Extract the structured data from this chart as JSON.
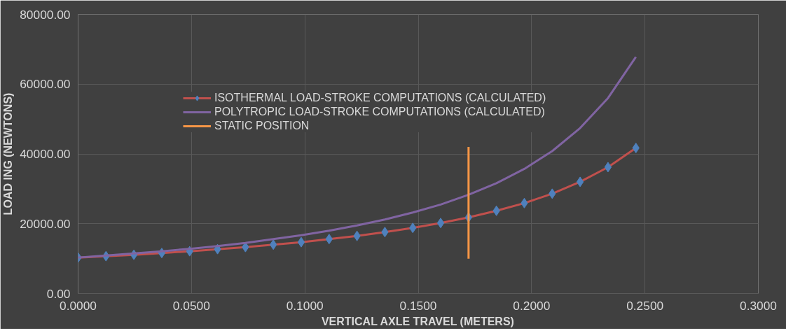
{
  "chart_data": {
    "type": "line",
    "xlabel": "VERTICAL AXLE TRAVEL (METERS)",
    "ylabel": "LOAD ING (NEWTONS)",
    "xlim": [
      0,
      0.3
    ],
    "ylim": [
      0,
      80000
    ],
    "xticks": [
      {
        "value": 0,
        "label": "0.0000"
      },
      {
        "value": 0.05,
        "label": "0.0500"
      },
      {
        "value": 0.1,
        "label": "0.1000"
      },
      {
        "value": 0.15,
        "label": "0.1500"
      },
      {
        "value": 0.2,
        "label": "0.2000"
      },
      {
        "value": 0.25,
        "label": "0.2500"
      },
      {
        "value": 0.3,
        "label": "0.3000"
      }
    ],
    "yticks": [
      {
        "value": 0,
        "label": "0.00"
      },
      {
        "value": 20000,
        "label": "20000.00"
      },
      {
        "value": 40000,
        "label": "40000.00"
      },
      {
        "value": 60000,
        "label": "60000.00"
      },
      {
        "value": 80000,
        "label": "80000.00"
      }
    ],
    "grid": true,
    "legend": "top",
    "x": [
      0,
      0.0123,
      0.0246,
      0.0369,
      0.0492,
      0.0615,
      0.0738,
      0.0861,
      0.0984,
      0.1107,
      0.123,
      0.1353,
      0.1476,
      0.1599,
      0.1722,
      0.1845,
      0.1968,
      0.2091,
      0.2214,
      0.2337,
      0.246
    ],
    "series": [
      {
        "name": "ISOTHERMAL LOAD-STROKE COMPUTATIONS (CALCULATED)",
        "color": "#c0504d",
        "marker": "diamond",
        "colors": [
          "#4f81bd",
          "#4f81bd",
          "#4f81bd",
          "#4f81bd",
          "#4f81bd",
          "#4f81bd",
          "#4f81bd",
          "#4f81bd",
          "#4f81bd",
          "#4f81bd",
          "#4f81bd",
          "#4f81bd",
          "#4f81bd",
          "#4f81bd",
          "#4f81bd",
          "#4f81bd",
          "#4f81bd",
          "#4f81bd",
          "#4f81bd",
          "#4f81bd",
          "#4f81bd"
        ],
        "values": [
          10300,
          10700,
          11100,
          11600,
          12100,
          12700,
          13300,
          14000,
          14700,
          15600,
          16500,
          17600,
          18800,
          20200,
          21800,
          23700,
          25900,
          28600,
          32000,
          36200,
          41700
        ]
      },
      {
        "name": "POLYTROPIC LOAD-STROKE COMPUTATIONS (CALCULATED)",
        "color": "#8064a2",
        "marker": "none",
        "values": [
          10300,
          10900,
          11500,
          12100,
          12800,
          13600,
          14500,
          15600,
          16700,
          18000,
          19500,
          21200,
          23200,
          25500,
          28300,
          31600,
          35700,
          40800,
          47400,
          56000,
          67800
        ]
      },
      {
        "name": "STATIC POSITION",
        "color": "#f79646",
        "marker": "none",
        "x": [
          0.1722,
          0.1722
        ],
        "values": [
          10000,
          42000
        ]
      }
    ]
  }
}
